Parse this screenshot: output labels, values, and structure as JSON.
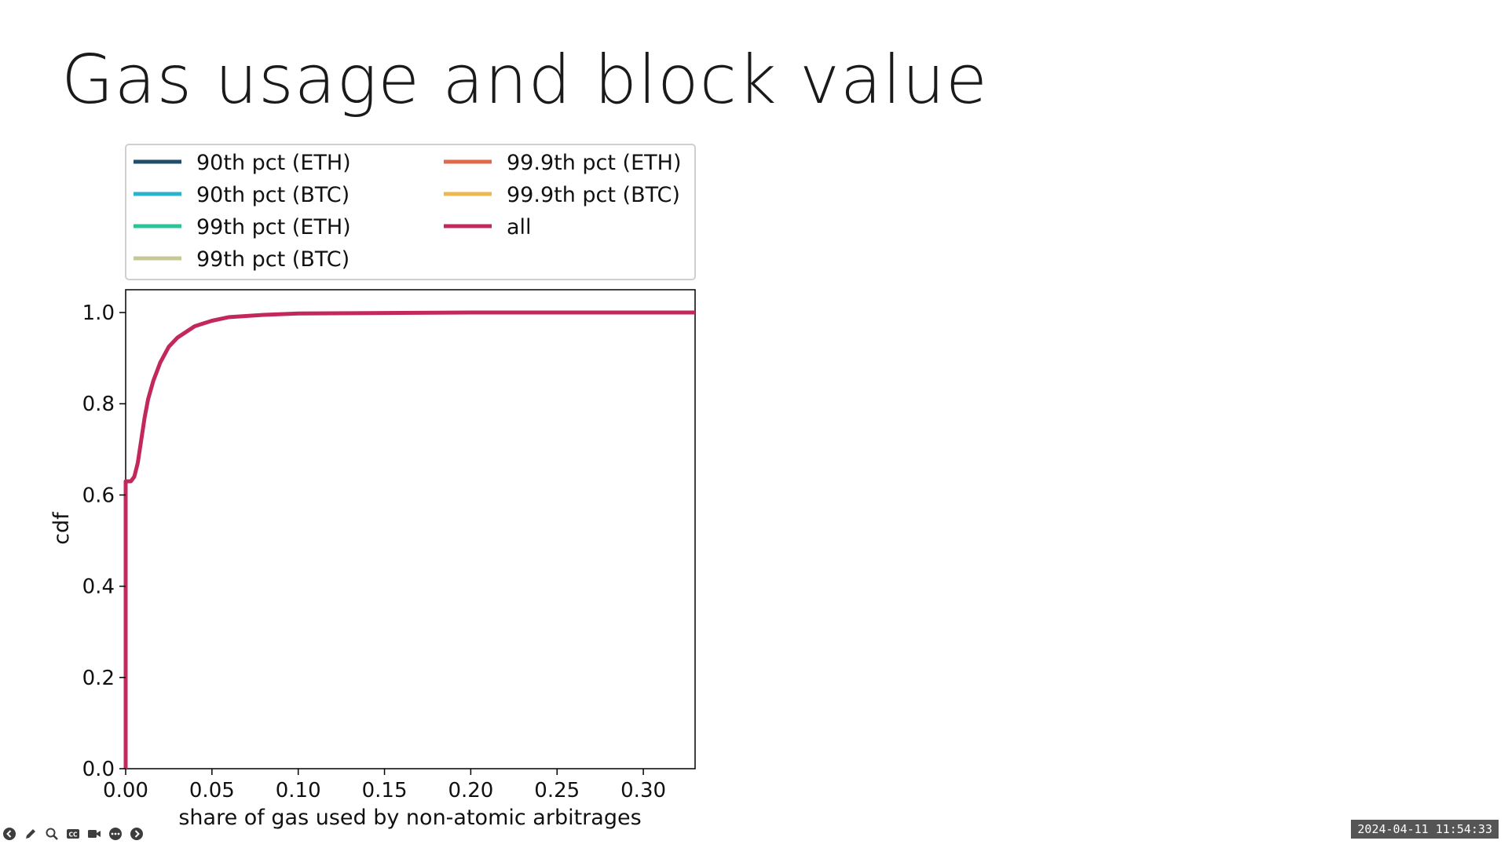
{
  "slide": {
    "title": "Gas usage and block value"
  },
  "controls": {
    "icons": [
      "previous-slide-icon",
      "pen-icon",
      "zoom-icon",
      "captions-icon",
      "camera-icon",
      "more-options-icon",
      "next-slide-icon"
    ],
    "captions_label": "CC"
  },
  "timestamp": "2024-04-11 11:54:33",
  "colors": {
    "90th_eth": "#1f4e6b",
    "90th_btc": "#2bb3cc",
    "99th_eth": "#2bc49a",
    "99th_btc": "#c6c995",
    "99_9th_eth": "#e0694a",
    "99_9th_btc": "#efb84c",
    "all": "#c2295a"
  },
  "chart_data": {
    "type": "line",
    "title": "",
    "xlabel": "share of gas used by non-atomic arbitrages",
    "ylabel": "cdf",
    "xlim": [
      0.0,
      0.33
    ],
    "ylim": [
      0.0,
      1.05
    ],
    "xticks": [
      "0.00",
      "0.05",
      "0.10",
      "0.15",
      "0.20",
      "0.25",
      "0.30"
    ],
    "yticks": [
      "0.0",
      "0.2",
      "0.4",
      "0.6",
      "0.8",
      "1.0"
    ],
    "grid": false,
    "legend_position": "above-plot",
    "legend": [
      {
        "label": "90th pct (ETH)",
        "color": "#1f4e6b"
      },
      {
        "label": "90th pct (BTC)",
        "color": "#2bb3cc"
      },
      {
        "label": "99th pct (ETH)",
        "color": "#2bc49a"
      },
      {
        "label": "99th pct (BTC)",
        "color": "#c6c995"
      },
      {
        "label": "99.9th pct (ETH)",
        "color": "#e0694a"
      },
      {
        "label": "99.9th pct (BTC)",
        "color": "#efb84c"
      },
      {
        "label": "all",
        "color": "#c2295a"
      }
    ],
    "series": [
      {
        "name": "all",
        "color": "#c2295a",
        "x": [
          0.0,
          0.0,
          0.001,
          0.003,
          0.005,
          0.007,
          0.009,
          0.011,
          0.013,
          0.016,
          0.02,
          0.025,
          0.03,
          0.04,
          0.05,
          0.06,
          0.08,
          0.1,
          0.15,
          0.2,
          0.25,
          0.3,
          0.33
        ],
        "y": [
          0.0,
          0.63,
          0.63,
          0.63,
          0.64,
          0.67,
          0.72,
          0.77,
          0.81,
          0.85,
          0.89,
          0.925,
          0.945,
          0.97,
          0.982,
          0.99,
          0.995,
          0.998,
          0.999,
          1.0,
          1.0,
          1.0,
          1.0
        ]
      }
    ]
  }
}
